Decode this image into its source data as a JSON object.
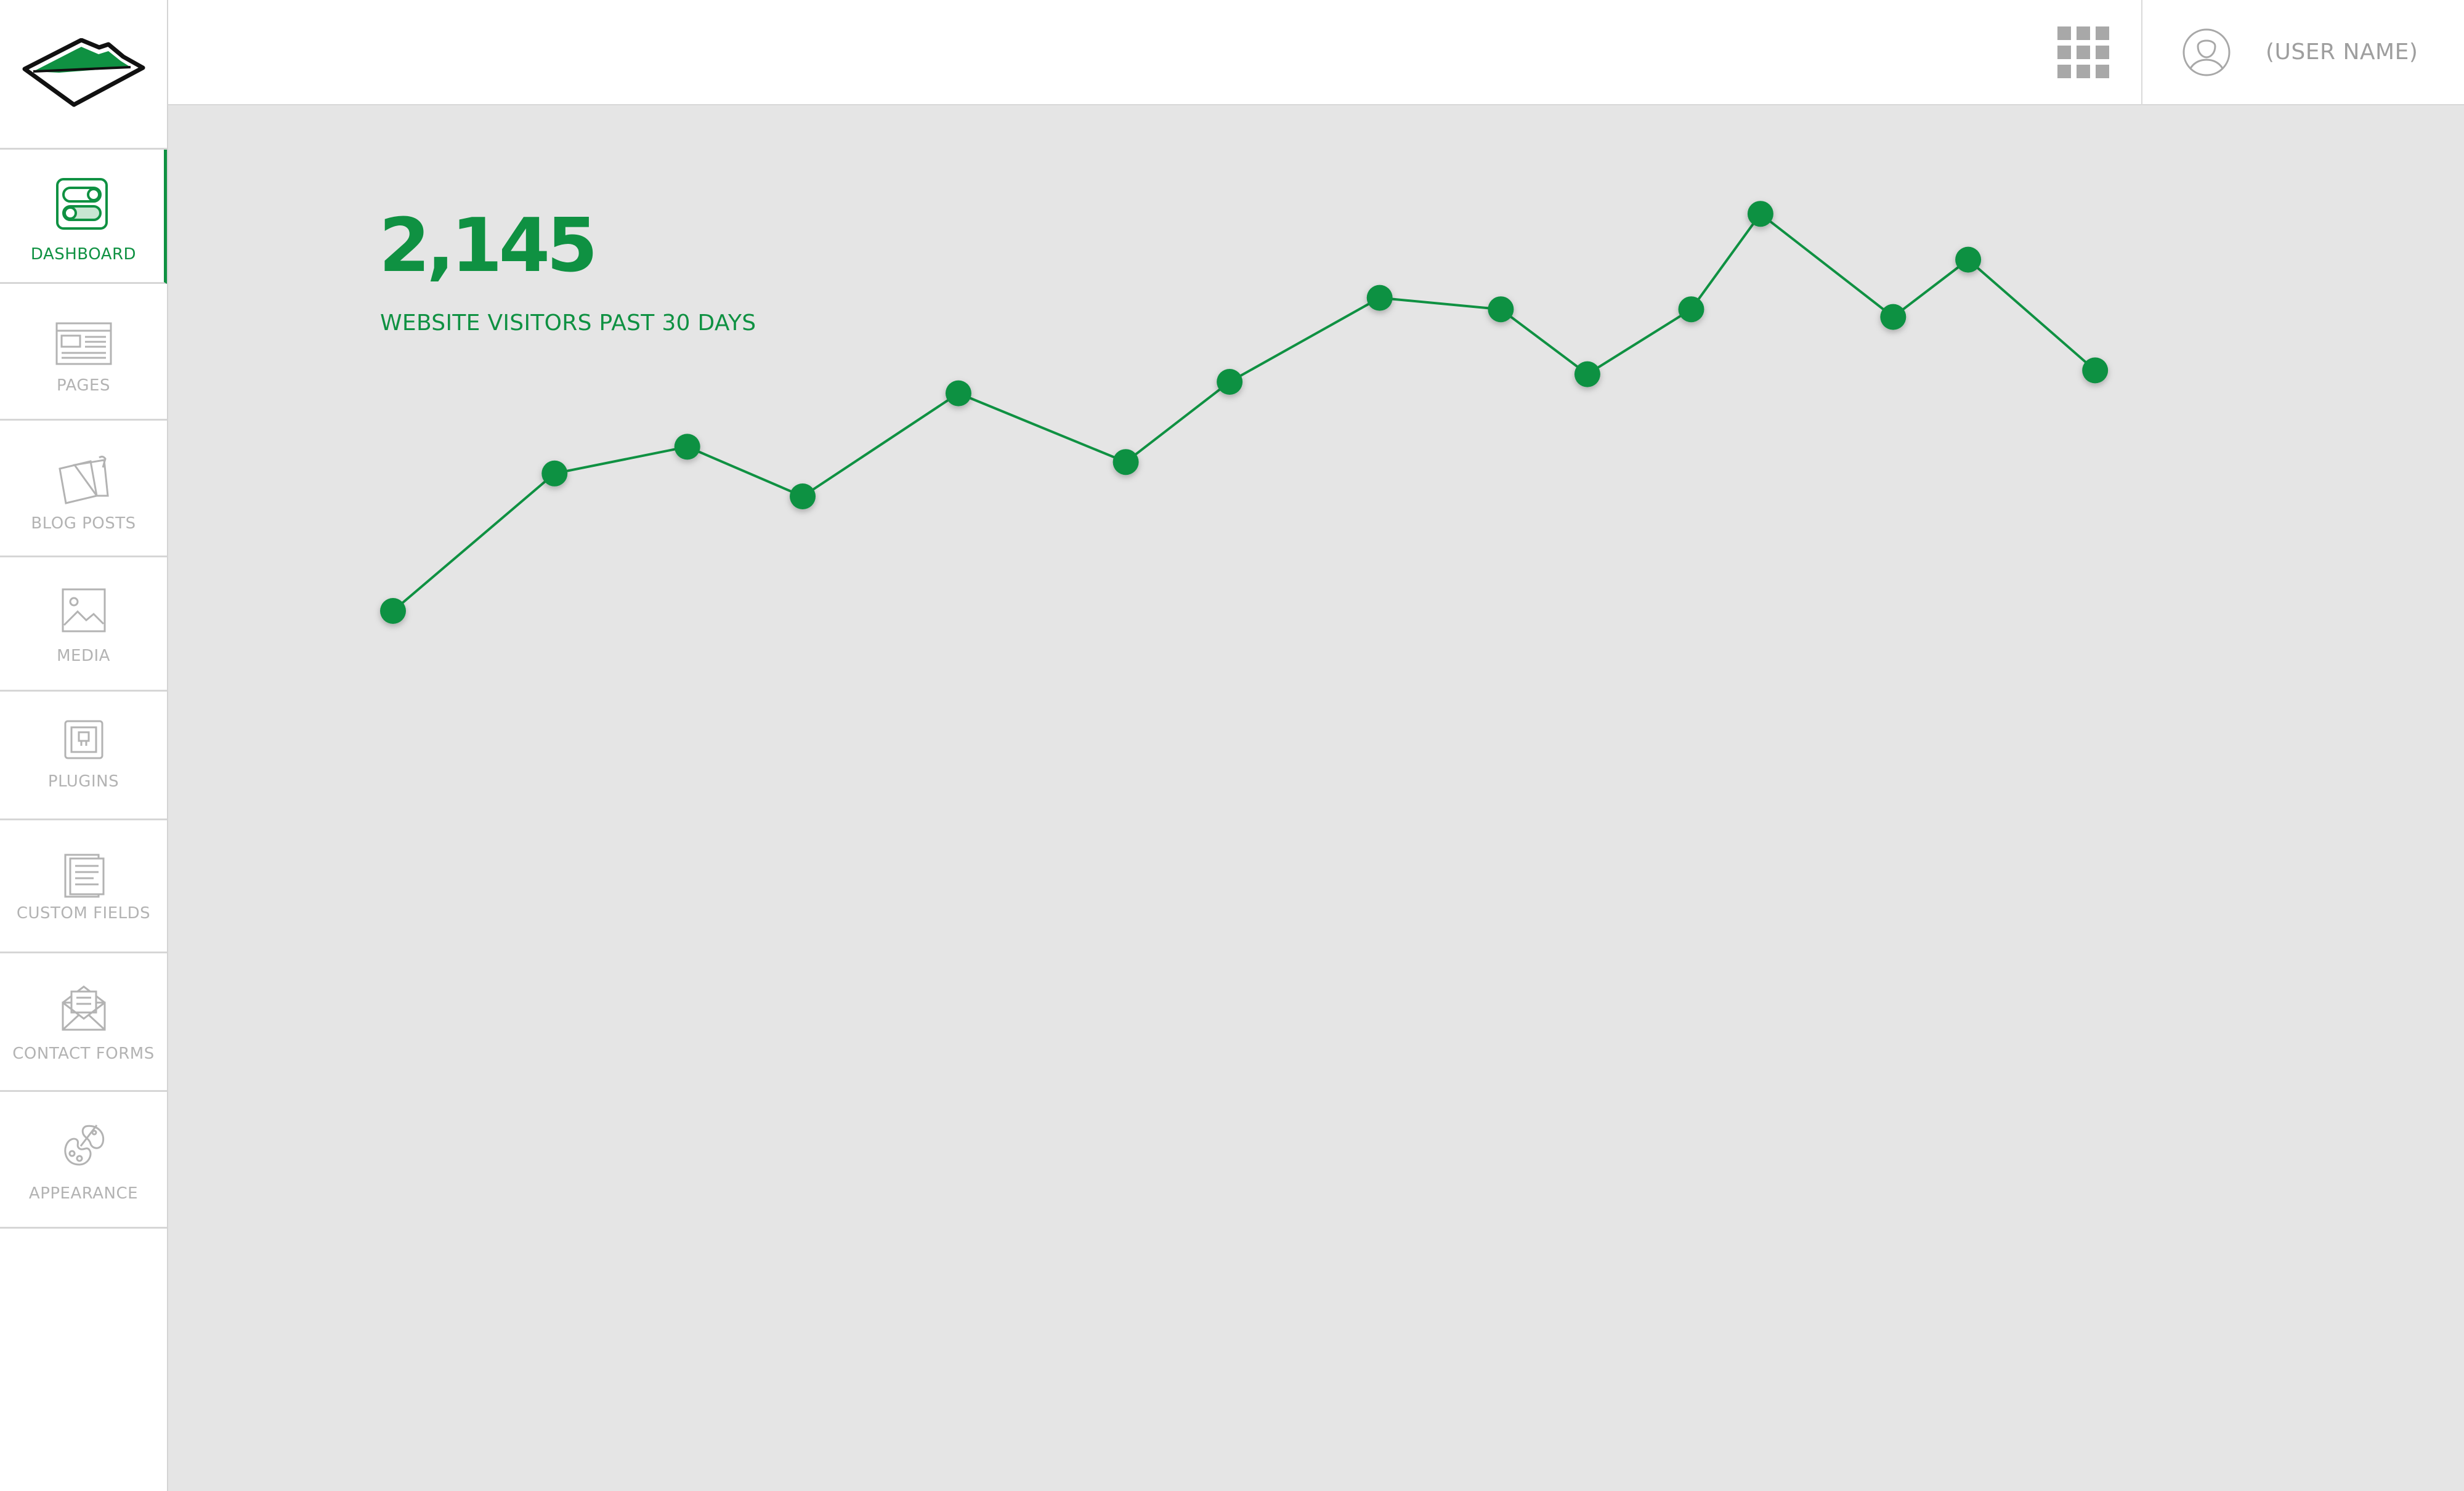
{
  "colors": {
    "accent": "#0f9142",
    "muted": "#b3b3b3",
    "background": "#e5e5e5",
    "panel": "#ffffff"
  },
  "sidebar": {
    "logo_icon": "brand-logo-icon",
    "items": [
      {
        "label": "DASHBOARD",
        "icon": "dashboard-toggle-icon",
        "active": true
      },
      {
        "label": "PAGES",
        "icon": "pages-icon",
        "active": false
      },
      {
        "label": "BLOG POSTS",
        "icon": "blog-posts-icon",
        "active": false
      },
      {
        "label": "MEDIA",
        "icon": "image-icon",
        "active": false
      },
      {
        "label": "PLUGINS",
        "icon": "plugin-icon",
        "active": false
      },
      {
        "label": "CUSTOM FIELDS",
        "icon": "document-icon",
        "active": false
      },
      {
        "label": "CONTACT FORMS",
        "icon": "envelope-icon",
        "active": false
      },
      {
        "label": "APPEARANCE",
        "icon": "palette-icon",
        "active": false
      }
    ]
  },
  "header": {
    "apps_icon": "grid-icon",
    "avatar_icon": "user-avatar-icon",
    "user_name": "(USER NAME)"
  },
  "stats": {
    "visitor_count": "2,145",
    "caption": "WEBSITE VISITORS PAST 30 DAYS"
  },
  "chart_data": {
    "type": "line",
    "title": "",
    "xlabel": "",
    "ylabel": "",
    "grid": false,
    "legend": "none",
    "x": [
      0,
      2.8,
      5.1,
      7.1,
      9.8,
      12.7,
      14.5,
      17.1,
      19.2,
      20.7,
      22.5,
      23.7,
      26.0,
      27.3,
      29.5
    ],
    "series": [
      {
        "values": [
          40,
          76,
          83,
          70,
          97,
          79,
          100,
          122,
          119,
          102,
          119,
          144,
          117,
          132,
          103
        ]
      }
    ],
    "xlim": [
      0,
      30
    ],
    "ylim": [
      0,
      200
    ]
  }
}
